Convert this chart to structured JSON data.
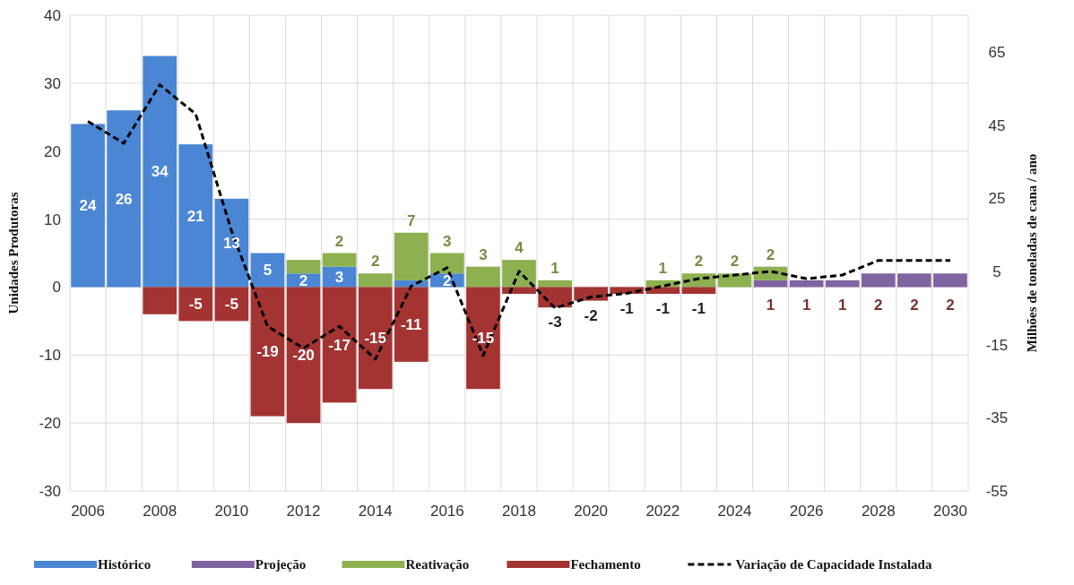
{
  "chart_data": {
    "type": "bar",
    "stacked": true,
    "ylabel": "Unidades Produtoras",
    "y2label": "Milhões de toneladas de cana / ano",
    "categories": [
      "2006",
      null,
      "2008",
      null,
      "2010",
      null,
      "2012",
      null,
      "2014",
      null,
      "2016",
      null,
      "2018",
      null,
      "2020",
      null,
      "2022",
      null,
      "2024",
      null,
      "2026",
      null,
      "2028",
      null,
      "2030"
    ],
    "series": [
      {
        "name": "Histórico",
        "color": "#4a86d4",
        "values": [
          24,
          26,
          34,
          21,
          13,
          5,
          2,
          3,
          null,
          1,
          2,
          null,
          null,
          null,
          null,
          null,
          null,
          null,
          null,
          null,
          null,
          null,
          null,
          null,
          null
        ],
        "value_labels": [
          "24",
          "26",
          "34",
          "21",
          "13",
          "5",
          "2",
          "3",
          null,
          null,
          "2",
          null,
          null,
          null,
          null,
          null,
          null,
          null,
          null,
          null,
          null,
          null,
          null,
          null,
          null
        ]
      },
      {
        "name": "Projeção",
        "color": "#8064a2",
        "values": [
          null,
          null,
          null,
          null,
          null,
          null,
          null,
          null,
          null,
          null,
          null,
          null,
          null,
          null,
          null,
          null,
          null,
          null,
          null,
          1,
          1,
          1,
          2,
          2,
          2
        ],
        "value_labels": [
          null,
          null,
          null,
          null,
          null,
          null,
          null,
          null,
          null,
          null,
          null,
          null,
          null,
          null,
          null,
          null,
          null,
          null,
          null,
          "1",
          "1",
          "1",
          "2",
          "2",
          "2"
        ]
      },
      {
        "name": "Reativação",
        "color": "#8db050",
        "values": [
          null,
          null,
          null,
          null,
          null,
          null,
          2,
          2,
          2,
          7,
          3,
          3,
          4,
          1,
          null,
          null,
          1,
          2,
          2,
          2,
          null,
          null,
          null,
          null,
          null
        ],
        "value_labels": [
          null,
          null,
          null,
          null,
          null,
          null,
          null,
          "2",
          "2",
          "7",
          "3",
          "3",
          "4",
          "1",
          null,
          null,
          "1",
          "2",
          "2",
          "2",
          null,
          null,
          null,
          null,
          null
        ]
      },
      {
        "name": "Fechamento",
        "color": "#a33432",
        "values": [
          null,
          null,
          -4,
          -5,
          -5,
          -19,
          -20,
          -17,
          -15,
          -11,
          null,
          -15,
          -1,
          -3,
          -2,
          -1,
          -1,
          -1,
          null,
          null,
          null,
          null,
          null,
          null,
          null
        ],
        "value_labels": [
          null,
          null,
          null,
          "-5",
          "-5",
          "-19",
          "-20",
          "-17",
          "-15",
          "-11",
          null,
          "-15",
          null,
          "-3",
          "-2",
          "-1",
          "-1",
          "-1",
          null,
          null,
          null,
          null,
          null,
          null,
          null
        ]
      },
      {
        "name": "Variação de Capacidade Instalada",
        "type": "line",
        "axis": "y2",
        "color": "#000000",
        "line_style": "dashed",
        "marker": "none",
        "values": [
          46,
          40,
          56,
          48,
          16,
          -10,
          -16,
          -10,
          -19,
          1,
          6,
          -18,
          5,
          -5,
          -2,
          -1,
          1,
          3,
          4,
          5,
          3,
          4,
          8,
          8,
          8
        ]
      }
    ],
    "ylim": [
      -30,
      40
    ],
    "yticks": [
      -30,
      -20,
      -10,
      0,
      10,
      20,
      30,
      40
    ],
    "y2lim": [
      -55,
      75
    ],
    "y2ticks": [
      -55,
      -35,
      -15,
      5,
      25,
      45,
      65
    ],
    "grid": true,
    "legend": "bottom"
  }
}
